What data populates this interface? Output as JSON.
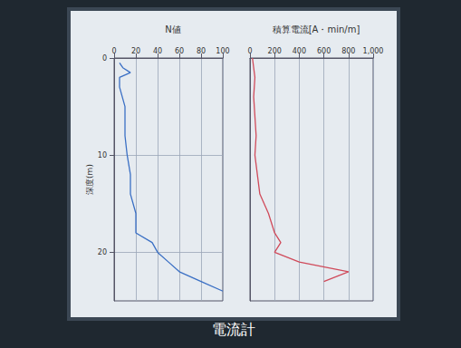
{
  "chart_data": [
    {
      "type": "line",
      "title": "N値",
      "ylabel": "深度(m)",
      "xlim": [
        0,
        100
      ],
      "xticks": [
        0,
        20,
        40,
        60,
        80,
        100
      ],
      "ylim": [
        0,
        25
      ],
      "yticks": [
        0,
        10,
        20
      ],
      "grid": true,
      "series": [
        {
          "name": "N値",
          "color": "#3a6fc4",
          "x": [
            5,
            8,
            15,
            5,
            5,
            10,
            10,
            12,
            15,
            15,
            20,
            20,
            35,
            40,
            50,
            60,
            80,
            100
          ],
          "y": [
            0.5,
            1,
            1.5,
            2,
            3,
            5,
            8,
            10,
            12,
            14,
            16,
            18,
            19,
            20,
            21,
            22,
            23,
            24
          ]
        }
      ]
    },
    {
      "type": "line",
      "title": "積算電流[A・min/m]",
      "xlim": [
        0,
        1000
      ],
      "xticks": [
        0,
        200,
        400,
        600,
        800,
        1000
      ],
      "ylim": [
        0,
        25
      ],
      "grid": true,
      "tick_labels": "x",
      "series": [
        {
          "name": "積算電流",
          "color": "#d04a5a",
          "x": [
            20,
            40,
            30,
            40,
            50,
            40,
            60,
            80,
            150,
            200,
            250,
            200,
            400,
            800,
            600
          ],
          "y": [
            0,
            2,
            4,
            6,
            8,
            10,
            12,
            14,
            16,
            18,
            19,
            20,
            21,
            22,
            23
          ]
        }
      ]
    }
  ],
  "caption": "電流計"
}
